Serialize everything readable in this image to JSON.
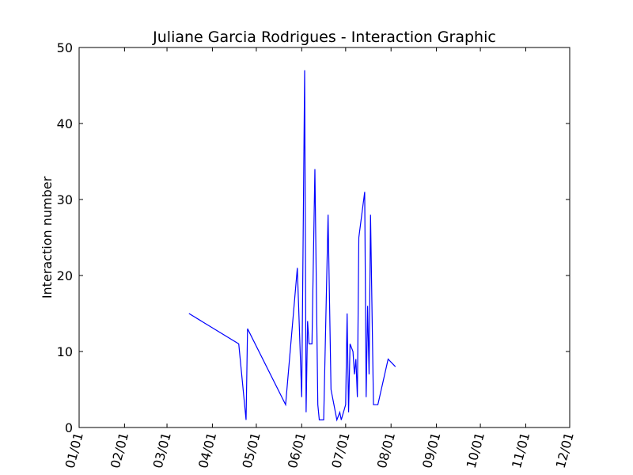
{
  "chart_data": {
    "type": "line",
    "title": "Juliane Garcia Rodrigues - Interaction Graphic",
    "xlabel": "",
    "ylabel": "Interaction number",
    "ylim": [
      0,
      50
    ],
    "y_ticks": [
      0,
      10,
      20,
      30,
      40,
      50
    ],
    "x_tick_labels": [
      "01/01",
      "02/01",
      "03/01",
      "04/01",
      "05/01",
      "06/01",
      "07/01",
      "08/01",
      "09/01",
      "10/01",
      "11/01",
      "12/01"
    ],
    "grid": false,
    "line_color": "#0000ff",
    "series": [
      {
        "points": [
          {
            "x": "03/16",
            "y": 15
          },
          {
            "x": "04/19",
            "y": 11
          },
          {
            "x": "04/24",
            "y": 1
          },
          {
            "x": "04/25",
            "y": 13
          },
          {
            "x": "05/21",
            "y": 3
          },
          {
            "x": "05/29",
            "y": 21
          },
          {
            "x": "06/01",
            "y": 4
          },
          {
            "x": "06/03",
            "y": 47
          },
          {
            "x": "06/04",
            "y": 2
          },
          {
            "x": "06/05",
            "y": 14
          },
          {
            "x": "06/06",
            "y": 11
          },
          {
            "x": "06/08",
            "y": 11
          },
          {
            "x": "06/10",
            "y": 34
          },
          {
            "x": "06/12",
            "y": 3
          },
          {
            "x": "06/13",
            "y": 1
          },
          {
            "x": "06/16",
            "y": 1
          },
          {
            "x": "06/19",
            "y": 28
          },
          {
            "x": "06/21",
            "y": 5
          },
          {
            "x": "06/24",
            "y": 2
          },
          {
            "x": "06/25",
            "y": 1
          },
          {
            "x": "06/27",
            "y": 2
          },
          {
            "x": "06/28",
            "y": 1
          },
          {
            "x": "07/01",
            "y": 3
          },
          {
            "x": "07/02",
            "y": 15
          },
          {
            "x": "07/03",
            "y": 2
          },
          {
            "x": "07/04",
            "y": 11
          },
          {
            "x": "07/06",
            "y": 10
          },
          {
            "x": "07/07",
            "y": 7
          },
          {
            "x": "07/08",
            "y": 9
          },
          {
            "x": "07/09",
            "y": 4
          },
          {
            "x": "07/10",
            "y": 25
          },
          {
            "x": "07/14",
            "y": 31
          },
          {
            "x": "07/15",
            "y": 4
          },
          {
            "x": "07/16",
            "y": 16
          },
          {
            "x": "07/17",
            "y": 7
          },
          {
            "x": "07/18",
            "y": 28
          },
          {
            "x": "07/20",
            "y": 3
          },
          {
            "x": "07/23",
            "y": 3
          },
          {
            "x": "07/30",
            "y": 9
          },
          {
            "x": "08/04",
            "y": 8
          }
        ]
      }
    ]
  }
}
